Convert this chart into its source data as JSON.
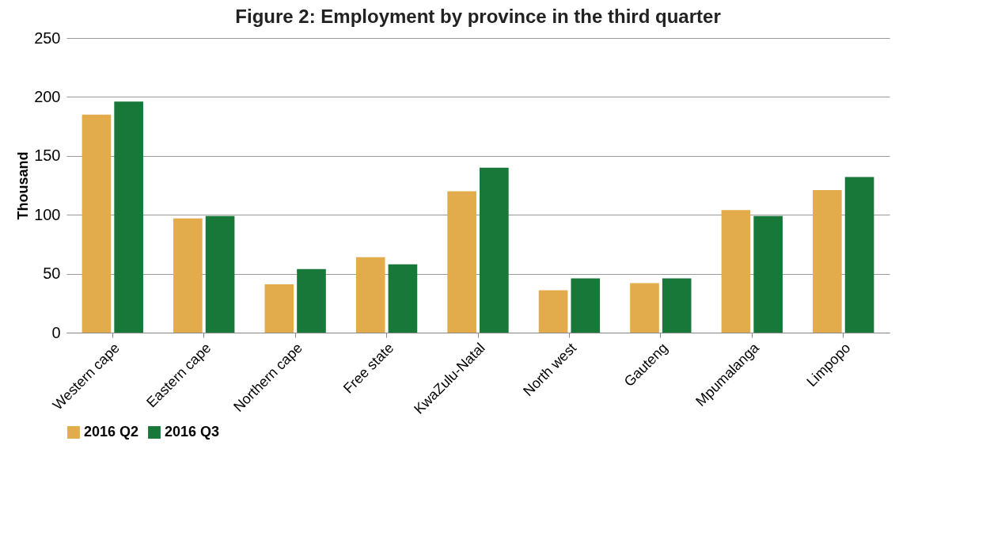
{
  "chart_data": {
    "type": "bar",
    "title": "Figure 2: Employment by province in the third quarter",
    "ylabel": "Thousand",
    "categories": [
      "Western cape",
      "Eastern cape",
      "Northern cape",
      "Free state",
      "KwaZulu-Natal",
      "North west",
      "Gauteng",
      "Mpumalanga",
      "Limpopo"
    ],
    "series": [
      {
        "name": "2016 Q2",
        "color": "#e2ac4c",
        "values": [
          185,
          97,
          41,
          64,
          120,
          36,
          42,
          104,
          121
        ]
      },
      {
        "name": "2016 Q3",
        "color": "#17783a",
        "values": [
          196,
          99,
          54,
          58,
          140,
          46,
          46,
          99,
          132
        ]
      }
    ],
    "ylim": [
      0,
      250
    ],
    "yticks": [
      0,
      50,
      100,
      150,
      200,
      250
    ],
    "grid": "y",
    "legend": "bottom"
  }
}
